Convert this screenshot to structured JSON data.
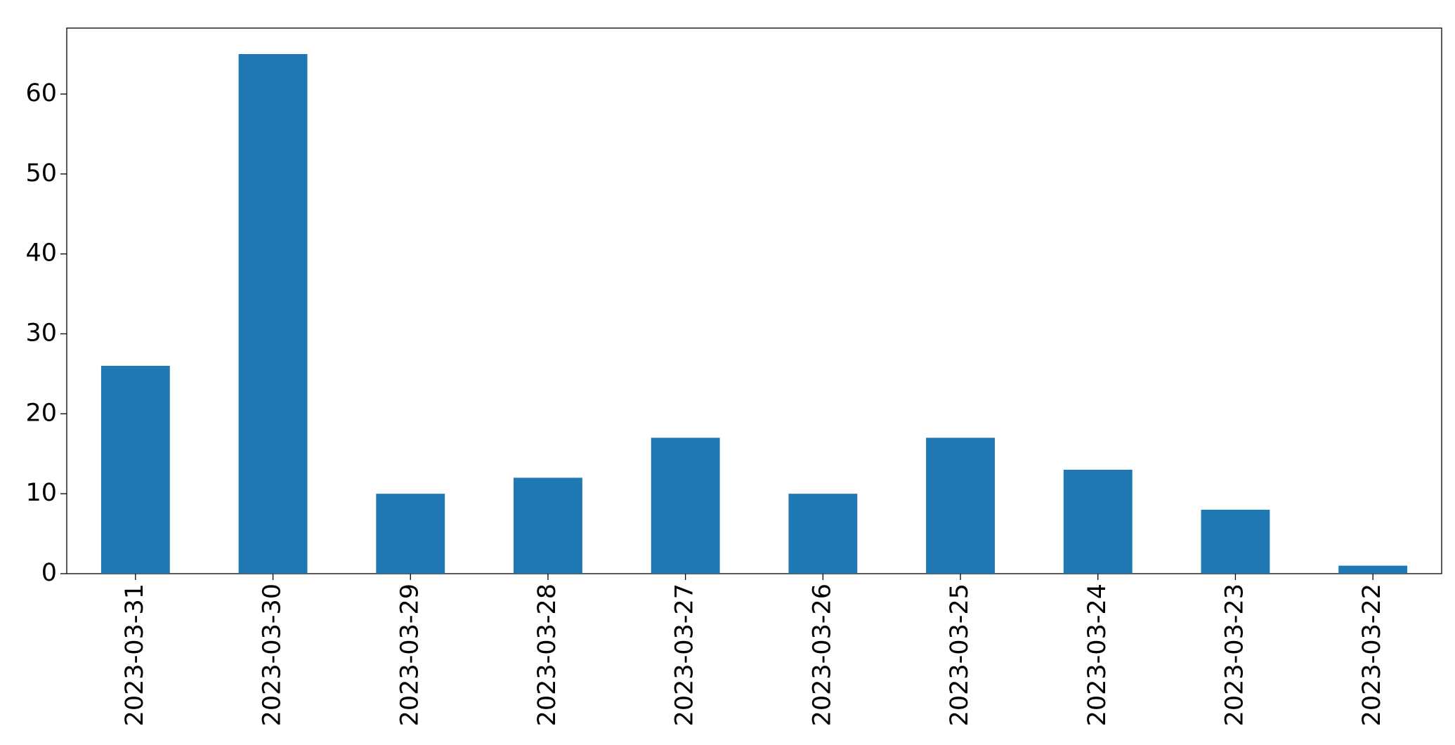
{
  "chart_data": {
    "type": "bar",
    "categories": [
      "2023-03-31",
      "2023-03-30",
      "2023-03-29",
      "2023-03-28",
      "2023-03-27",
      "2023-03-26",
      "2023-03-25",
      "2023-03-24",
      "2023-03-23",
      "2023-03-22"
    ],
    "values": [
      26,
      65,
      10,
      12,
      17,
      10,
      17,
      13,
      8,
      1
    ],
    "color": "#1f77b4",
    "ylim": [
      0,
      68.25
    ],
    "yticks": [
      0,
      10,
      20,
      30,
      40,
      50,
      60
    ],
    "grid": false
  }
}
